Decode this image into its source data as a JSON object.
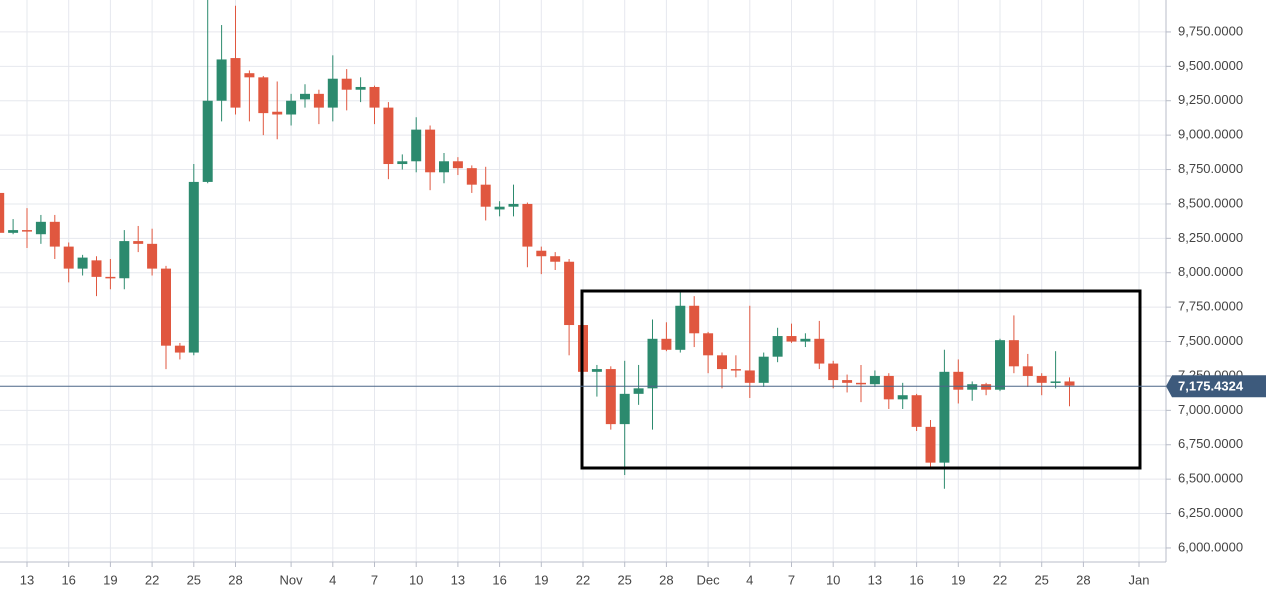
{
  "chart_data": {
    "type": "candlestick",
    "x": [
      "Oct 11",
      "Oct 12",
      "Oct 13",
      "Oct 14",
      "Oct 15",
      "Oct 16",
      "Oct 17",
      "Oct 18",
      "Oct 19",
      "Oct 20",
      "Oct 21",
      "Oct 22",
      "Oct 23",
      "Oct 24",
      "Oct 25",
      "Oct 26",
      "Oct 27",
      "Oct 28",
      "Oct 29",
      "Oct 30",
      "Oct 31",
      "Nov 1",
      "Nov 2",
      "Nov 3",
      "Nov 4",
      "Nov 5",
      "Nov 6",
      "Nov 7",
      "Nov 8",
      "Nov 9",
      "Nov 10",
      "Nov 11",
      "Nov 12",
      "Nov 13",
      "Nov 14",
      "Nov 15",
      "Nov 16",
      "Nov 17",
      "Nov 18",
      "Nov 19",
      "Nov 20",
      "Nov 21",
      "Nov 22",
      "Nov 23",
      "Nov 24",
      "Nov 25",
      "Nov 26",
      "Nov 27",
      "Nov 28",
      "Nov 29",
      "Nov 30",
      "Dec 1",
      "Dec 2",
      "Dec 3",
      "Dec 4",
      "Dec 5",
      "Dec 6",
      "Dec 7",
      "Dec 8",
      "Dec 9",
      "Dec 10",
      "Dec 11",
      "Dec 12",
      "Dec 13",
      "Dec 14",
      "Dec 15",
      "Dec 16",
      "Dec 17",
      "Dec 18",
      "Dec 19",
      "Dec 20",
      "Dec 21",
      "Dec 22",
      "Dec 23",
      "Dec 24",
      "Dec 25",
      "Dec 26",
      "Dec 27"
    ],
    "open": [
      8580,
      8290,
      8310,
      8280,
      8370,
      8190,
      8030,
      8090,
      7970,
      7960,
      8230,
      8210,
      8030,
      7470,
      7420,
      8660,
      9250,
      9560,
      9450,
      9420,
      9170,
      9150,
      9260,
      9300,
      9200,
      9410,
      9330,
      9350,
      9200,
      8790,
      8810,
      9040,
      8730,
      8810,
      8760,
      8640,
      8460,
      8480,
      8500,
      8160,
      8120,
      8080,
      7620,
      7280,
      7300,
      6900,
      7120,
      7160,
      7520,
      7440,
      7760,
      7560,
      7400,
      7300,
      7290,
      7200,
      7390,
      7540,
      7500,
      7520,
      7340,
      7220,
      7200,
      7190,
      7250,
      7080,
      7110,
      6880,
      6620,
      7280,
      7150,
      7190,
      7150,
      7510,
      7320,
      7250,
      7200,
      7210
    ],
    "high": [
      8600,
      8390,
      8470,
      8420,
      8420,
      8220,
      8130,
      8120,
      8100,
      8310,
      8340,
      8320,
      8050,
      7490,
      8790,
      9990,
      9800,
      9940,
      9470,
      9430,
      9390,
      9300,
      9370,
      9330,
      9580,
      9480,
      9420,
      9360,
      9240,
      8860,
      9130,
      9070,
      8870,
      8840,
      8780,
      8770,
      8520,
      8640,
      8510,
      8190,
      8150,
      8100,
      7700,
      7330,
      7320,
      7360,
      7330,
      7660,
      7640,
      7860,
      7830,
      7570,
      7420,
      7400,
      7760,
      7420,
      7600,
      7630,
      7560,
      7650,
      7360,
      7260,
      7330,
      7290,
      7270,
      7200,
      7120,
      6930,
      7440,
      7370,
      7210,
      7200,
      7520,
      7690,
      7410,
      7270,
      7430,
      7240
    ],
    "low": [
      8280,
      8280,
      8180,
      8210,
      8100,
      7930,
      7980,
      7830,
      7880,
      7880,
      8150,
      7980,
      7300,
      7370,
      7400,
      8650,
      9100,
      9150,
      9100,
      9000,
      8970,
      9070,
      9200,
      9080,
      9100,
      9180,
      9240,
      9080,
      8680,
      8750,
      8730,
      8600,
      8650,
      8710,
      8580,
      8380,
      8410,
      8410,
      8040,
      7990,
      8020,
      7400,
      7100,
      7100,
      6860,
      6530,
      7040,
      6860,
      7430,
      7420,
      7460,
      7270,
      7160,
      7240,
      7090,
      7170,
      7350,
      7490,
      7460,
      7300,
      7160,
      7130,
      7060,
      7170,
      7010,
      7010,
      6850,
      6570,
      6430,
      7050,
      7070,
      7110,
      7140,
      7270,
      7170,
      7110,
      7160,
      7030
    ],
    "close": [
      8290,
      8310,
      8300,
      8370,
      8190,
      8030,
      8110,
      7970,
      7960,
      8230,
      8210,
      8030,
      7470,
      7420,
      8660,
      9250,
      9550,
      9200,
      9420,
      9160,
      9150,
      9250,
      9300,
      9200,
      9410,
      9330,
      9350,
      9200,
      8790,
      8810,
      9040,
      8730,
      8810,
      8760,
      8640,
      8480,
      8480,
      8500,
      8190,
      8120,
      8080,
      7620,
      7280,
      7300,
      6900,
      7120,
      7160,
      7520,
      7440,
      7760,
      7560,
      7400,
      7300,
      7290,
      7200,
      7390,
      7540,
      7500,
      7520,
      7340,
      7220,
      7200,
      7190,
      7250,
      7080,
      7110,
      6880,
      6620,
      7280,
      7150,
      7190,
      7150,
      7510,
      7320,
      7250,
      7200,
      7210,
      7180
    ],
    "up_color": "#2c8a6e",
    "down_color": "#e0573f",
    "ylim": [
      5898,
      9982
    ],
    "yticks": [
      {
        "value": 6000,
        "label": "6,000.0000"
      },
      {
        "value": 6250,
        "label": "6,250.0000"
      },
      {
        "value": 6500,
        "label": "6,500.0000"
      },
      {
        "value": 6750,
        "label": "6,750.0000"
      },
      {
        "value": 7000,
        "label": "7,000.0000"
      },
      {
        "value": 7250,
        "label": "7,250.0000"
      },
      {
        "value": 7500,
        "label": "7,500.0000"
      },
      {
        "value": 7750,
        "label": "7,750.0000"
      },
      {
        "value": 8000,
        "label": "8,000.0000"
      },
      {
        "value": 8250,
        "label": "8,250.0000"
      },
      {
        "value": 8500,
        "label": "8,500.0000"
      },
      {
        "value": 8750,
        "label": "8,750.0000"
      },
      {
        "value": 9000,
        "label": "9,000.0000"
      },
      {
        "value": 9250,
        "label": "9,250.0000"
      },
      {
        "value": 9500,
        "label": "9,500.0000"
      },
      {
        "value": 9750,
        "label": "9,750.0000"
      }
    ],
    "xticks": [
      {
        "value": "Oct 13",
        "label": "13"
      },
      {
        "value": "Oct 16",
        "label": "16"
      },
      {
        "value": "Oct 19",
        "label": "19"
      },
      {
        "value": "Oct 22",
        "label": "22"
      },
      {
        "value": "Oct 25",
        "label": "25"
      },
      {
        "value": "Oct 28",
        "label": "28"
      },
      {
        "value": "Nov 1",
        "label": "Nov"
      },
      {
        "value": "Nov 4",
        "label": "4"
      },
      {
        "value": "Nov 7",
        "label": "7"
      },
      {
        "value": "Nov 10",
        "label": "10"
      },
      {
        "value": "Nov 13",
        "label": "13"
      },
      {
        "value": "Nov 16",
        "label": "16"
      },
      {
        "value": "Nov 19",
        "label": "19"
      },
      {
        "value": "Nov 22",
        "label": "22"
      },
      {
        "value": "Nov 25",
        "label": "25"
      },
      {
        "value": "Nov 28",
        "label": "28"
      },
      {
        "value": "Dec 1",
        "label": "Dec"
      },
      {
        "value": "Dec 4",
        "label": "4"
      },
      {
        "value": "Dec 7",
        "label": "7"
      },
      {
        "value": "Dec 10",
        "label": "10"
      },
      {
        "value": "Dec 13",
        "label": "13"
      },
      {
        "value": "Dec 16",
        "label": "16"
      },
      {
        "value": "Dec 19",
        "label": "19"
      },
      {
        "value": "Dec 22",
        "label": "22"
      },
      {
        "value": "Dec 25",
        "label": "25"
      },
      {
        "value": "Dec 28",
        "label": "28"
      },
      {
        "value": "Jan 1",
        "label": "Jan"
      }
    ],
    "last_price": {
      "value": 7175.4324,
      "label": "7,175.4324"
    },
    "grid": true
  }
}
